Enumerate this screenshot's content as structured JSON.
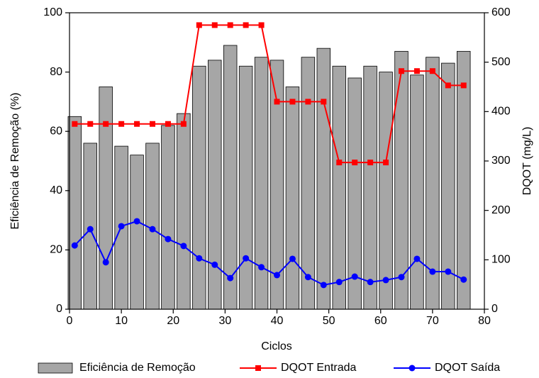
{
  "chart_data": {
    "type": "bar-line",
    "xlabel": "Ciclos",
    "ylabel": "Eficiência de Remoção (%)",
    "y2label": "DQOT (mg/L)",
    "x": [
      1,
      4,
      7,
      10,
      13,
      16,
      19,
      22,
      25,
      28,
      31,
      34,
      37,
      40,
      43,
      46,
      49,
      52,
      55,
      58,
      61,
      64,
      67,
      70,
      73,
      76
    ],
    "series": [
      {
        "name": "Eficiência de Remoção",
        "kind": "bar",
        "color": "#a6a6a6",
        "axis": "y",
        "values": [
          65,
          56,
          75,
          55,
          52,
          56,
          62,
          66,
          82,
          84,
          89,
          82,
          85,
          84,
          75,
          85,
          88,
          82,
          78,
          82,
          80,
          87,
          79,
          85,
          83,
          87
        ]
      },
      {
        "name": "DQOT Entrada",
        "kind": "line",
        "marker": "square",
        "color": "#ff0000",
        "axis": "y2",
        "values": [
          375,
          375,
          375,
          375,
          375,
          375,
          375,
          375,
          575,
          575,
          575,
          575,
          575,
          420,
          420,
          420,
          420,
          297,
          297,
          297,
          297,
          482,
          482,
          482,
          453,
          453
        ]
      },
      {
        "name": "DQOT Saída",
        "kind": "line",
        "marker": "circle",
        "color": "#0000ff",
        "axis": "y2",
        "values": [
          129,
          162,
          95,
          168,
          178,
          162,
          142,
          128,
          103,
          90,
          63,
          103,
          85,
          69,
          102,
          65,
          49,
          55,
          66,
          55,
          59,
          65,
          102,
          76,
          76,
          60
        ]
      }
    ],
    "xlim": [
      0,
      80
    ],
    "xticks": [
      0,
      10,
      20,
      30,
      40,
      50,
      60,
      70,
      80
    ],
    "ylim": [
      0,
      100
    ],
    "yticks": [
      0,
      20,
      40,
      60,
      80,
      100
    ],
    "y2lim": [
      0,
      600
    ],
    "y2ticks": [
      0,
      100,
      200,
      300,
      400,
      500,
      600
    ]
  }
}
